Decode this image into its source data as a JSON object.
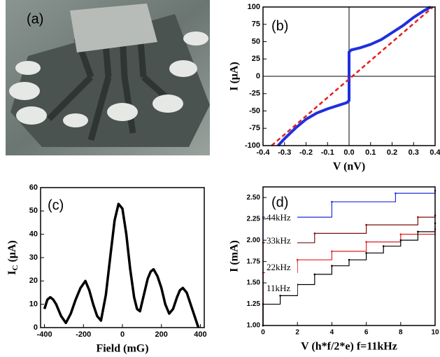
{
  "image": {
    "label": "(a)"
  },
  "chart_data": [
    {
      "type": "line",
      "panel_label": "(b)",
      "xlabel": "V (nV)",
      "ylabel": "I (μA)",
      "xlim": [
        -0.4,
        0.4
      ],
      "xticks": [
        -0.4,
        -0.3,
        -0.2,
        -0.1,
        {
          "value": 0,
          "label": "0.0"
        },
        0.1,
        0.2,
        0.3,
        0.4
      ],
      "ylim": [
        -100,
        100
      ],
      "yticks": [
        -100,
        -75,
        -50,
        -25,
        0,
        25,
        50,
        75,
        100
      ],
      "zero_lines": true,
      "series": [
        {
          "color": "#1f2fe0",
          "width": 4,
          "dash": false,
          "x": [
            -0.33,
            -0.3,
            -0.25,
            -0.2,
            -0.15,
            -0.1,
            -0.05,
            -0.01,
            0,
            0,
            0.01,
            0.05,
            0.1,
            0.15,
            0.2,
            0.25,
            0.3,
            0.35,
            0.38
          ],
          "values": [
            -100,
            -90,
            -75,
            -62,
            -53,
            -47,
            -42,
            -38,
            -35,
            35,
            38,
            41,
            46,
            53,
            63,
            73,
            85,
            95,
            100
          ]
        },
        {
          "color": "#e02020",
          "width": 2.5,
          "dash": true,
          "x": [
            -0.36,
            0.39
          ],
          "values": [
            -100,
            100
          ]
        }
      ]
    },
    {
      "type": "line",
      "panel_label": "(c)",
      "xlabel": "Field (mG)",
      "ylabel": {
        "main": "I",
        "sub": "C",
        "unit": " (μA)"
      },
      "xlim": [
        -420,
        420
      ],
      "xticks": [
        -400,
        -200,
        0,
        200,
        400
      ],
      "ylim": [
        0,
        60
      ],
      "yticks": [
        0,
        10,
        20,
        30,
        40,
        50,
        60
      ],
      "series": [
        {
          "color": "#000000",
          "width": 3.5,
          "dash": false,
          "x": [
            -400,
            -385,
            -370,
            -355,
            -340,
            -315,
            -290,
            -265,
            -240,
            -215,
            -190,
            -170,
            -150,
            -130,
            -110,
            -85,
            -60,
            -40,
            -20,
            0,
            20,
            40,
            60,
            75,
            90,
            110,
            130,
            145,
            160,
            180,
            200,
            220,
            240,
            260,
            280,
            295,
            310,
            330,
            350,
            370,
            390
          ],
          "values": [
            8,
            12,
            13,
            12,
            10,
            5,
            2,
            6,
            12,
            17,
            20,
            16,
            10,
            5,
            3,
            14,
            32,
            46,
            53,
            51,
            40,
            25,
            13,
            8,
            7,
            14,
            21,
            24,
            25,
            22,
            17,
            10,
            6,
            8,
            13,
            16,
            17,
            15,
            10,
            5,
            0
          ]
        }
      ]
    },
    {
      "type": "line",
      "panel_label": "(d)",
      "xlabel": "V (h*f/2*e)  f=11kHz",
      "ylabel": "I (mA)",
      "drawstyle": "steps-post",
      "xlim": [
        0,
        10
      ],
      "xticks": [
        0,
        2,
        4,
        6,
        8,
        10
      ],
      "ylim": [
        1.0,
        2.625
      ],
      "yticks": [
        {
          "value": 1.0,
          "label": "1.00"
        },
        {
          "value": 1.25,
          "label": "1.25"
        },
        {
          "value": 1.5,
          "label": "1.50"
        },
        {
          "value": 1.75,
          "label": "1.75"
        },
        {
          "value": 2.0,
          "label": "2.00"
        },
        {
          "value": 2.25,
          "label": "2.25"
        },
        {
          "value": 2.5,
          "label": "2.50"
        }
      ],
      "series": [
        {
          "name": "44kHz",
          "color": "#1f2fe0",
          "width": 1.2,
          "dash": false,
          "x": [
            0,
            0,
            4,
            7.7,
            10
          ],
          "values": [
            1.0,
            2.27,
            2.45,
            2.55,
            2.58
          ]
        },
        {
          "name": "33kHz",
          "color": "#7a1010",
          "width": 1.2,
          "dash": false,
          "x": [
            0,
            0,
            3,
            6,
            9,
            10
          ],
          "values": [
            1.0,
            1.97,
            2.08,
            2.18,
            2.27,
            2.29
          ]
        },
        {
          "name": "22kHz",
          "color": "#e02020",
          "width": 1.2,
          "dash": false,
          "x": [
            0,
            0,
            2,
            4,
            6,
            8,
            10
          ],
          "values": [
            1.0,
            1.62,
            1.77,
            1.87,
            1.98,
            2.07,
            2.13
          ]
        },
        {
          "name": "11kHz",
          "color": "#000000",
          "width": 1.2,
          "dash": false,
          "x": [
            0,
            0,
            1,
            2,
            3,
            4,
            5,
            6,
            7,
            8,
            9,
            10
          ],
          "values": [
            1.0,
            1.25,
            1.35,
            1.48,
            1.6,
            1.7,
            1.77,
            1.85,
            1.93,
            2.0,
            2.1,
            2.2
          ]
        }
      ]
    }
  ]
}
